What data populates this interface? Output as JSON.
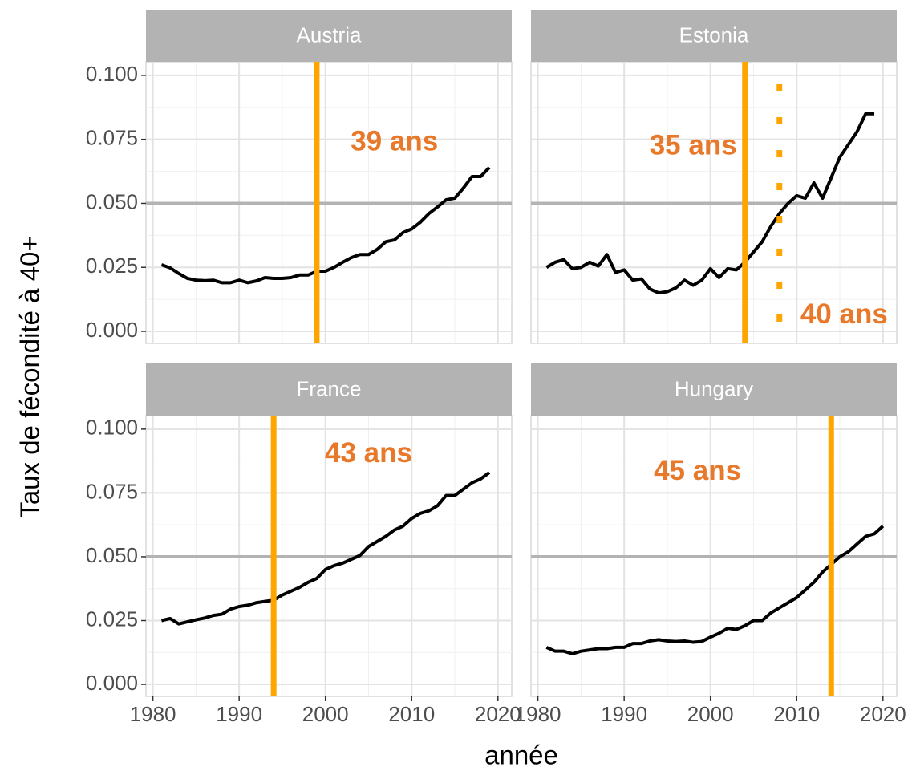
{
  "xlabel": "année",
  "ylabel": "Taux de fécondité à 40+",
  "chart_data": [
    {
      "type": "line",
      "title": "Austria",
      "color": "#000000",
      "x": [
        1981,
        1982,
        1983,
        1984,
        1985,
        1986,
        1987,
        1988,
        1989,
        1990,
        1991,
        1992,
        1993,
        1994,
        1995,
        1996,
        1997,
        1998,
        1999,
        2000,
        2001,
        2002,
        2003,
        2004,
        2005,
        2006,
        2007,
        2008,
        2009,
        2010,
        2011,
        2012,
        2013,
        2014,
        2015,
        2016,
        2017,
        2018,
        2019
      ],
      "values": [
        0.026,
        0.0248,
        0.0226,
        0.0207,
        0.02,
        0.0198,
        0.02,
        0.019,
        0.019,
        0.02,
        0.019,
        0.0197,
        0.021,
        0.0207,
        0.0207,
        0.021,
        0.022,
        0.022,
        0.0235,
        0.0235,
        0.025,
        0.027,
        0.0288,
        0.03,
        0.03,
        0.032,
        0.035,
        0.0357,
        0.0386,
        0.04,
        0.0426,
        0.046,
        0.0486,
        0.0514,
        0.052,
        0.056,
        0.0605,
        0.0605,
        0.064
      ],
      "xlim": [
        1979.2,
        2021.6
      ],
      "ylim": [
        -0.0047,
        0.1053
      ],
      "xticks": [
        1980,
        1990,
        2000,
        2010,
        2020
      ],
      "yticks": [
        {
          "value": 0,
          "label": "0.000"
        },
        0.025,
        {
          "value": 0.05,
          "label": "0.050"
        },
        0.075,
        {
          "value": 0.1,
          "label": "0.100"
        }
      ],
      "x_minor_grid": [
        1985,
        1995,
        2005,
        2015
      ],
      "y_minor_grid": [
        0.0125,
        0.0375,
        0.0625,
        0.0875
      ],
      "hline": {
        "y": 0.05,
        "color": "#b3b3b3"
      },
      "vlines": [
        {
          "x": 1999,
          "color": "#ffa500",
          "style": "solid"
        }
      ],
      "annotations": [
        {
          "text": "39 ans",
          "x": 2008,
          "y": 0.0735,
          "color": "#e8792b"
        }
      ]
    },
    {
      "type": "line",
      "title": "Estonia",
      "color": "#000000",
      "x": [
        1981,
        1982,
        1983,
        1984,
        1985,
        1986,
        1987,
        1988,
        1989,
        1990,
        1991,
        1992,
        1993,
        1994,
        1995,
        1996,
        1997,
        1998,
        1999,
        2000,
        2001,
        2002,
        2003,
        2004,
        2005,
        2006,
        2007,
        2008,
        2009,
        2010,
        2011,
        2012,
        2013,
        2014,
        2015,
        2016,
        2017,
        2018,
        2019
      ],
      "values": [
        0.025,
        0.027,
        0.028,
        0.0245,
        0.025,
        0.027,
        0.0255,
        0.03,
        0.023,
        0.024,
        0.02,
        0.0205,
        0.0165,
        0.015,
        0.0155,
        0.017,
        0.02,
        0.018,
        0.02,
        0.0245,
        0.021,
        0.0245,
        0.024,
        0.027,
        0.031,
        0.035,
        0.041,
        0.046,
        0.05,
        0.053,
        0.052,
        0.058,
        0.052,
        0.06,
        0.068,
        0.073,
        0.078,
        0.085,
        0.085
      ],
      "xlim": [
        1979.2,
        2021.6
      ],
      "ylim": [
        -0.0047,
        0.1053
      ],
      "xticks": [
        1980,
        1990,
        2000,
        2010,
        2020
      ],
      "yticks": [
        {
          "value": 0,
          "label": "0.000"
        },
        0.025,
        {
          "value": 0.05,
          "label": "0.050"
        },
        0.075,
        {
          "value": 0.1,
          "label": "0.100"
        }
      ],
      "x_minor_grid": [
        1985,
        1995,
        2005,
        2015
      ],
      "y_minor_grid": [
        0.0125,
        0.0375,
        0.0625,
        0.0875
      ],
      "hline": {
        "y": 0.05,
        "color": "#b3b3b3"
      },
      "vlines": [
        {
          "x": 2004,
          "color": "#ffa500",
          "style": "solid"
        },
        {
          "x": 2008,
          "color": "#ffa500",
          "style": "dotted"
        }
      ],
      "annotations": [
        {
          "text": "35 ans",
          "x": 1998,
          "y": 0.072,
          "color": "#e8792b"
        },
        {
          "text": "40 ans",
          "x": 2015.5,
          "y": 0.006,
          "color": "#e8792b"
        }
      ]
    },
    {
      "type": "line",
      "title": "France",
      "color": "#000000",
      "x": [
        1981,
        1982,
        1983,
        1984,
        1985,
        1986,
        1987,
        1988,
        1989,
        1990,
        1991,
        1992,
        1993,
        1994,
        1995,
        1996,
        1997,
        1998,
        1999,
        2000,
        2001,
        2002,
        2003,
        2004,
        2005,
        2006,
        2007,
        2008,
        2009,
        2010,
        2011,
        2012,
        2013,
        2014,
        2015,
        2016,
        2017,
        2018,
        2019
      ],
      "values": [
        0.025,
        0.0258,
        0.0237,
        0.0245,
        0.0253,
        0.026,
        0.027,
        0.0275,
        0.0295,
        0.0305,
        0.031,
        0.032,
        0.0325,
        0.033,
        0.035,
        0.0365,
        0.038,
        0.04,
        0.0415,
        0.045,
        0.0465,
        0.0475,
        0.049,
        0.0505,
        0.054,
        0.056,
        0.058,
        0.0605,
        0.062,
        0.065,
        0.067,
        0.068,
        0.07,
        0.074,
        0.074,
        0.0765,
        0.079,
        0.0805,
        0.083
      ],
      "xlim": [
        1979.2,
        2021.6
      ],
      "ylim": [
        -0.0047,
        0.1053
      ],
      "xticks": [
        1980,
        1990,
        2000,
        2010,
        2020
      ],
      "yticks": [
        {
          "value": 0,
          "label": "0.000"
        },
        0.025,
        {
          "value": 0.05,
          "label": "0.050"
        },
        0.075,
        {
          "value": 0.1,
          "label": "0.100"
        }
      ],
      "x_minor_grid": [
        1985,
        1995,
        2005,
        2015
      ],
      "y_minor_grid": [
        0.0125,
        0.0375,
        0.0625,
        0.0875
      ],
      "hline": {
        "y": 0.05,
        "color": "#b3b3b3"
      },
      "vlines": [
        {
          "x": 1994,
          "color": "#ffa500",
          "style": "solid"
        }
      ],
      "annotations": [
        {
          "text": "43 ans",
          "x": 2005,
          "y": 0.09,
          "color": "#e8792b"
        }
      ]
    },
    {
      "type": "line",
      "title": "Hungary",
      "color": "#000000",
      "x": [
        1981,
        1982,
        1983,
        1984,
        1985,
        1986,
        1987,
        1988,
        1989,
        1990,
        1991,
        1992,
        1993,
        1994,
        1995,
        1996,
        1997,
        1998,
        1999,
        2000,
        2001,
        2002,
        2003,
        2004,
        2005,
        2006,
        2007,
        2008,
        2009,
        2010,
        2011,
        2012,
        2013,
        2014,
        2015,
        2016,
        2017,
        2018,
        2019,
        2020
      ],
      "values": [
        0.0145,
        0.013,
        0.013,
        0.012,
        0.013,
        0.0135,
        0.014,
        0.014,
        0.0145,
        0.0145,
        0.016,
        0.016,
        0.017,
        0.0175,
        0.017,
        0.0168,
        0.017,
        0.0165,
        0.0168,
        0.0185,
        0.02,
        0.022,
        0.0215,
        0.023,
        0.025,
        0.025,
        0.028,
        0.03,
        0.032,
        0.034,
        0.037,
        0.04,
        0.044,
        0.047,
        0.05,
        0.052,
        0.055,
        0.058,
        0.059,
        0.062
      ],
      "xlim": [
        1979.2,
        2021.6
      ],
      "ylim": [
        -0.0047,
        0.1053
      ],
      "xticks": [
        1980,
        1990,
        2000,
        2010,
        2020
      ],
      "yticks": [
        {
          "value": 0,
          "label": "0.000"
        },
        0.025,
        {
          "value": 0.05,
          "label": "0.050"
        },
        0.075,
        {
          "value": 0.1,
          "label": "0.100"
        }
      ],
      "x_minor_grid": [
        1985,
        1995,
        2005,
        2015
      ],
      "y_minor_grid": [
        0.0125,
        0.0375,
        0.0625,
        0.0875
      ],
      "hline": {
        "y": 0.05,
        "color": "#b3b3b3"
      },
      "vlines": [
        {
          "x": 2014,
          "color": "#ffa500",
          "style": "solid"
        }
      ],
      "annotations": [
        {
          "text": "45 ans",
          "x": 1998.5,
          "y": 0.083,
          "color": "#e8792b"
        }
      ]
    }
  ]
}
